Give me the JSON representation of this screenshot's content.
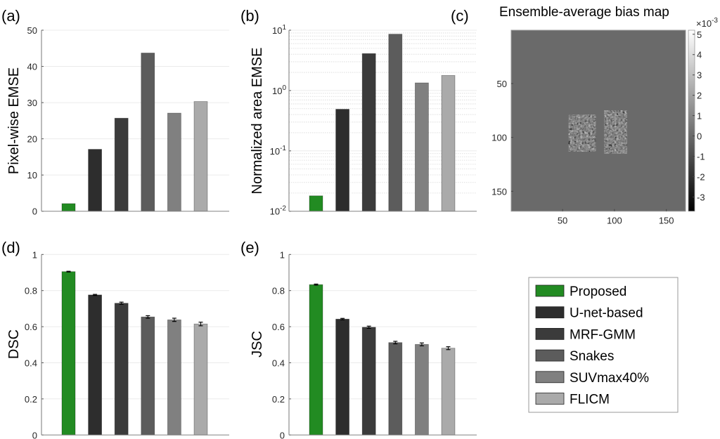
{
  "methods": [
    "Proposed",
    "U-net-based",
    "MRF-GMM",
    "Snakes",
    "SUVmax40%",
    "FLICM"
  ],
  "colors": {
    "Proposed": "#228B22",
    "U-net-based": "#2d2d2d",
    "MRF-GMM": "#3b3b3b",
    "Snakes": "#5c5c5c",
    "SUVmax40%": "#808080",
    "FLICM": "#aaaaaa"
  },
  "chart_data": [
    {
      "id": "a",
      "panel_label": "(a)",
      "type": "bar",
      "title": "",
      "xlabel": "",
      "ylabel": "Pixel-wise EMSE",
      "yscale": "linear",
      "ylim": [
        0,
        50
      ],
      "yticks": [
        "0",
        "10",
        "20",
        "30",
        "40",
        "50"
      ],
      "ytick_values": [
        0,
        10,
        20,
        30,
        40,
        50
      ],
      "grid": true,
      "categories": [
        "Proposed",
        "U-net-based",
        "MRF-GMM",
        "Snakes",
        "SUVmax40%",
        "FLICM"
      ],
      "values": [
        2.1,
        17.1,
        25.7,
        43.7,
        27.1,
        30.3
      ]
    },
    {
      "id": "b",
      "panel_label": "(b)",
      "type": "bar",
      "title": "",
      "xlabel": "",
      "ylabel": "Normalized area EMSE",
      "yscale": "log",
      "ylim": [
        0.01,
        10
      ],
      "yticks": [
        {
          "base": "10",
          "exp": "-2"
        },
        {
          "base": "10",
          "exp": "-1"
        },
        {
          "base": "10",
          "exp": "0"
        },
        {
          "base": "10",
          "exp": "1"
        }
      ],
      "ytick_values": [
        0.01,
        0.1,
        1,
        10
      ],
      "grid": true,
      "categories": [
        "Proposed",
        "U-net-based",
        "MRF-GMM",
        "Snakes",
        "SUVmax40%",
        "FLICM"
      ],
      "values": [
        0.018,
        0.49,
        4.1,
        8.6,
        1.34,
        1.78
      ]
    },
    {
      "id": "c",
      "panel_label": "(c)",
      "type": "heatmap",
      "title": "Ensemble-average bias map",
      "xlabel": "",
      "ylabel": "",
      "xlim": [
        0.5,
        168.5
      ],
      "ylim": [
        0.5,
        168.5
      ],
      "xticks": [
        "50",
        "100",
        "150"
      ],
      "xtick_values": [
        50,
        100,
        150
      ],
      "yticks": [
        "50",
        "100",
        "150"
      ],
      "ytick_values": [
        50,
        100,
        150
      ],
      "colormap": "gray",
      "colorbar": {
        "range": [
          -3.7,
          5.2
        ],
        "ticks": [
          "-3",
          "-2",
          "-1",
          "0",
          "1",
          "2",
          "3",
          "4",
          "5"
        ],
        "tick_values": [
          -3,
          -2,
          -1,
          0,
          1,
          2,
          3,
          4,
          5
        ],
        "multiplier_base": "×10",
        "multiplier_exp": "-3"
      },
      "background_value": 0,
      "regions": [
        {
          "name": "left-lesion-region",
          "center": [
            69,
            96
          ],
          "radius": [
            13,
            17
          ]
        },
        {
          "name": "right-lesion-region",
          "center": [
            101,
            95
          ],
          "radius": [
            11,
            20
          ]
        }
      ]
    },
    {
      "id": "d",
      "panel_label": "(d)",
      "type": "bar",
      "title": "",
      "xlabel": "",
      "ylabel": "DSC",
      "yscale": "linear",
      "ylim": [
        0,
        1
      ],
      "yticks": [
        "0",
        "0.2",
        "0.4",
        "0.6",
        "0.8",
        "1"
      ],
      "ytick_values": [
        0,
        0.2,
        0.4,
        0.6,
        0.8,
        1
      ],
      "grid": true,
      "categories": [
        "Proposed",
        "U-net-based",
        "MRF-GMM",
        "Snakes",
        "SUVmax40%",
        "FLICM"
      ],
      "values": [
        0.905,
        0.776,
        0.73,
        0.654,
        0.638,
        0.615
      ],
      "errors": [
        0.002,
        0.003,
        0.006,
        0.007,
        0.009,
        0.01
      ]
    },
    {
      "id": "e",
      "panel_label": "(e)",
      "type": "bar",
      "title": "",
      "xlabel": "",
      "ylabel": "JSC",
      "yscale": "linear",
      "ylim": [
        0,
        1
      ],
      "yticks": [
        "0",
        "0.2",
        "0.4",
        "0.6",
        "0.8",
        "1"
      ],
      "ytick_values": [
        0,
        0.2,
        0.4,
        0.6,
        0.8,
        1
      ],
      "grid": true,
      "categories": [
        "Proposed",
        "U-net-based",
        "MRF-GMM",
        "Snakes",
        "SUVmax40%",
        "FLICM"
      ],
      "values": [
        0.833,
        0.642,
        0.597,
        0.512,
        0.502,
        0.481
      ],
      "errors": [
        0.003,
        0.004,
        0.006,
        0.007,
        0.008,
        0.008
      ]
    }
  ],
  "legend": {
    "placement": "bottom-right",
    "entries": [
      "Proposed",
      "U-net-based",
      "MRF-GMM",
      "Snakes",
      "SUVmax40%",
      "FLICM"
    ]
  }
}
